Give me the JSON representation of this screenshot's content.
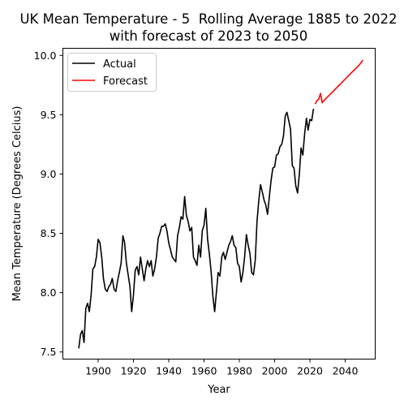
{
  "chart_data": {
    "type": "line",
    "title_line1": "UK Mean Temperature - 5  Rolling Average 1885 to 2022",
    "title_line2": "with forecast of 2023 to 2050",
    "xlabel": "Year",
    "ylabel": "Mean Temperature (Degrees Celcius)",
    "xlim": [
      1880,
      2057
    ],
    "ylim": [
      7.44,
      10.06
    ],
    "xticks": [
      1900,
      1920,
      1940,
      1960,
      1980,
      2000,
      2020,
      2040
    ],
    "yticks": [
      7.5,
      8.0,
      8.5,
      9.0,
      9.5,
      10.0
    ],
    "ytick_labels": [
      "7.5",
      "8.0",
      "8.5",
      "9.0",
      "9.5",
      "10.0"
    ],
    "grid": false,
    "legend_position": "top-left",
    "series": [
      {
        "name": "Actual",
        "color": "#000000",
        "x": [
          1889,
          1890,
          1891,
          1892,
          1893,
          1894,
          1895,
          1896,
          1897,
          1898,
          1899,
          1900,
          1901,
          1902,
          1903,
          1904,
          1905,
          1906,
          1907,
          1908,
          1909,
          1910,
          1911,
          1912,
          1913,
          1914,
          1915,
          1916,
          1917,
          1918,
          1919,
          1920,
          1921,
          1922,
          1923,
          1924,
          1925,
          1926,
          1927,
          1928,
          1929,
          1930,
          1931,
          1932,
          1933,
          1934,
          1935,
          1936,
          1937,
          1938,
          1939,
          1940,
          1941,
          1942,
          1943,
          1944,
          1945,
          1946,
          1947,
          1948,
          1949,
          1950,
          1951,
          1952,
          1953,
          1954,
          1955,
          1956,
          1957,
          1958,
          1959,
          1960,
          1961,
          1962,
          1963,
          1964,
          1965,
          1966,
          1967,
          1968,
          1969,
          1970,
          1971,
          1972,
          1973,
          1974,
          1975,
          1976,
          1977,
          1978,
          1979,
          1980,
          1981,
          1982,
          1983,
          1984,
          1985,
          1986,
          1987,
          1988,
          1989,
          1990,
          1991,
          1992,
          1993,
          1994,
          1995,
          1996,
          1997,
          1998,
          1999,
          2000,
          2001,
          2002,
          2003,
          2004,
          2005,
          2006,
          2007,
          2008,
          2009,
          2010,
          2011,
          2012,
          2013,
          2014,
          2015,
          2016,
          2017,
          2018,
          2019,
          2020,
          2021,
          2022
        ],
        "values": [
          7.53,
          7.65,
          7.68,
          7.58,
          7.87,
          7.91,
          7.84,
          7.98,
          8.2,
          8.22,
          8.3,
          8.45,
          8.42,
          8.3,
          8.12,
          8.03,
          8.01,
          8.05,
          8.07,
          8.12,
          8.03,
          8.01,
          8.1,
          8.17,
          8.25,
          8.48,
          8.42,
          8.25,
          8.15,
          8.05,
          7.84,
          7.98,
          8.19,
          8.22,
          8.15,
          8.3,
          8.2,
          8.1,
          8.2,
          8.27,
          8.22,
          8.27,
          8.14,
          8.2,
          8.3,
          8.46,
          8.5,
          8.56,
          8.56,
          8.58,
          8.52,
          8.42,
          8.36,
          8.3,
          8.28,
          8.26,
          8.48,
          8.55,
          8.64,
          8.62,
          8.81,
          8.65,
          8.6,
          8.52,
          8.55,
          8.3,
          8.27,
          8.23,
          8.4,
          8.3,
          8.52,
          8.57,
          8.71,
          8.45,
          8.33,
          8.18,
          7.97,
          7.84,
          8.0,
          8.17,
          8.14,
          8.3,
          8.34,
          8.28,
          8.34,
          8.4,
          8.43,
          8.48,
          8.4,
          8.38,
          8.25,
          8.22,
          8.09,
          8.17,
          8.3,
          8.49,
          8.4,
          8.33,
          8.17,
          8.15,
          8.27,
          8.6,
          8.77,
          8.91,
          8.85,
          8.78,
          8.74,
          8.66,
          8.81,
          8.95,
          9.05,
          9.06,
          9.16,
          9.17,
          9.23,
          9.25,
          9.32,
          9.49,
          9.52,
          9.45,
          9.38,
          9.07,
          9.05,
          8.9,
          8.84,
          9.0,
          9.22,
          9.16,
          9.34,
          9.47,
          9.37,
          9.46,
          9.45,
          9.55
        ]
      },
      {
        "name": "Forecast",
        "color": "#ff0000",
        "x": [
          2023,
          2024,
          2025,
          2026,
          2027,
          2028,
          2030,
          2032,
          2034,
          2036,
          2038,
          2040,
          2042,
          2044,
          2046,
          2048,
          2050
        ],
        "values": [
          9.59,
          9.62,
          9.63,
          9.68,
          9.6,
          9.62,
          9.65,
          9.68,
          9.71,
          9.74,
          9.77,
          9.8,
          9.83,
          9.86,
          9.89,
          9.92,
          9.96
        ]
      }
    ]
  }
}
